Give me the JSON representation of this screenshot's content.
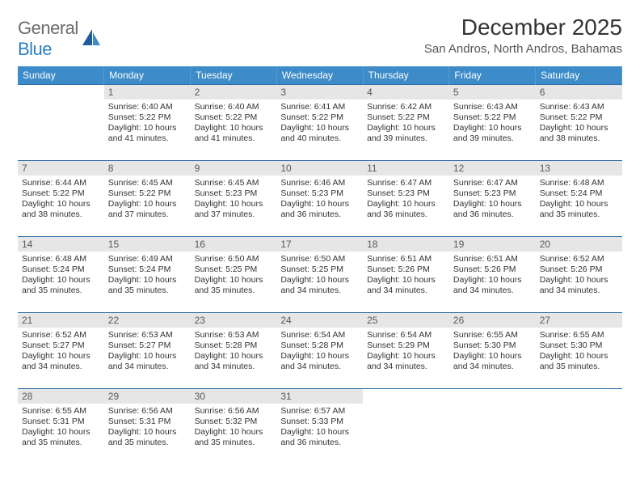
{
  "logo": {
    "word1": "General",
    "word2": "Blue"
  },
  "title": "December 2025",
  "location": "San Andros, North Andros, Bahamas",
  "colors": {
    "header_bg": "#3d8bc8",
    "header_text": "#ffffff",
    "daynum_bg": "#e6e6e6",
    "daynum_text": "#595959",
    "rule": "#2f6ea8",
    "logo_gray": "#6b6b6b",
    "logo_blue": "#2f7ec2"
  },
  "columns": [
    "Sunday",
    "Monday",
    "Tuesday",
    "Wednesday",
    "Thursday",
    "Friday",
    "Saturday"
  ],
  "start_offset": 1,
  "days": [
    {
      "n": 1,
      "sunrise": "6:40 AM",
      "sunset": "5:22 PM",
      "dl": "10 hours and 41 minutes."
    },
    {
      "n": 2,
      "sunrise": "6:40 AM",
      "sunset": "5:22 PM",
      "dl": "10 hours and 41 minutes."
    },
    {
      "n": 3,
      "sunrise": "6:41 AM",
      "sunset": "5:22 PM",
      "dl": "10 hours and 40 minutes."
    },
    {
      "n": 4,
      "sunrise": "6:42 AM",
      "sunset": "5:22 PM",
      "dl": "10 hours and 39 minutes."
    },
    {
      "n": 5,
      "sunrise": "6:43 AM",
      "sunset": "5:22 PM",
      "dl": "10 hours and 39 minutes."
    },
    {
      "n": 6,
      "sunrise": "6:43 AM",
      "sunset": "5:22 PM",
      "dl": "10 hours and 38 minutes."
    },
    {
      "n": 7,
      "sunrise": "6:44 AM",
      "sunset": "5:22 PM",
      "dl": "10 hours and 38 minutes."
    },
    {
      "n": 8,
      "sunrise": "6:45 AM",
      "sunset": "5:22 PM",
      "dl": "10 hours and 37 minutes."
    },
    {
      "n": 9,
      "sunrise": "6:45 AM",
      "sunset": "5:23 PM",
      "dl": "10 hours and 37 minutes."
    },
    {
      "n": 10,
      "sunrise": "6:46 AM",
      "sunset": "5:23 PM",
      "dl": "10 hours and 36 minutes."
    },
    {
      "n": 11,
      "sunrise": "6:47 AM",
      "sunset": "5:23 PM",
      "dl": "10 hours and 36 minutes."
    },
    {
      "n": 12,
      "sunrise": "6:47 AM",
      "sunset": "5:23 PM",
      "dl": "10 hours and 36 minutes."
    },
    {
      "n": 13,
      "sunrise": "6:48 AM",
      "sunset": "5:24 PM",
      "dl": "10 hours and 35 minutes."
    },
    {
      "n": 14,
      "sunrise": "6:48 AM",
      "sunset": "5:24 PM",
      "dl": "10 hours and 35 minutes."
    },
    {
      "n": 15,
      "sunrise": "6:49 AM",
      "sunset": "5:24 PM",
      "dl": "10 hours and 35 minutes."
    },
    {
      "n": 16,
      "sunrise": "6:50 AM",
      "sunset": "5:25 PM",
      "dl": "10 hours and 35 minutes."
    },
    {
      "n": 17,
      "sunrise": "6:50 AM",
      "sunset": "5:25 PM",
      "dl": "10 hours and 34 minutes."
    },
    {
      "n": 18,
      "sunrise": "6:51 AM",
      "sunset": "5:26 PM",
      "dl": "10 hours and 34 minutes."
    },
    {
      "n": 19,
      "sunrise": "6:51 AM",
      "sunset": "5:26 PM",
      "dl": "10 hours and 34 minutes."
    },
    {
      "n": 20,
      "sunrise": "6:52 AM",
      "sunset": "5:26 PM",
      "dl": "10 hours and 34 minutes."
    },
    {
      "n": 21,
      "sunrise": "6:52 AM",
      "sunset": "5:27 PM",
      "dl": "10 hours and 34 minutes."
    },
    {
      "n": 22,
      "sunrise": "6:53 AM",
      "sunset": "5:27 PM",
      "dl": "10 hours and 34 minutes."
    },
    {
      "n": 23,
      "sunrise": "6:53 AM",
      "sunset": "5:28 PM",
      "dl": "10 hours and 34 minutes."
    },
    {
      "n": 24,
      "sunrise": "6:54 AM",
      "sunset": "5:28 PM",
      "dl": "10 hours and 34 minutes."
    },
    {
      "n": 25,
      "sunrise": "6:54 AM",
      "sunset": "5:29 PM",
      "dl": "10 hours and 34 minutes."
    },
    {
      "n": 26,
      "sunrise": "6:55 AM",
      "sunset": "5:30 PM",
      "dl": "10 hours and 34 minutes."
    },
    {
      "n": 27,
      "sunrise": "6:55 AM",
      "sunset": "5:30 PM",
      "dl": "10 hours and 35 minutes."
    },
    {
      "n": 28,
      "sunrise": "6:55 AM",
      "sunset": "5:31 PM",
      "dl": "10 hours and 35 minutes."
    },
    {
      "n": 29,
      "sunrise": "6:56 AM",
      "sunset": "5:31 PM",
      "dl": "10 hours and 35 minutes."
    },
    {
      "n": 30,
      "sunrise": "6:56 AM",
      "sunset": "5:32 PM",
      "dl": "10 hours and 35 minutes."
    },
    {
      "n": 31,
      "sunrise": "6:57 AM",
      "sunset": "5:33 PM",
      "dl": "10 hours and 36 minutes."
    }
  ],
  "labels": {
    "sunrise": "Sunrise:",
    "sunset": "Sunset:",
    "daylight": "Daylight:"
  }
}
